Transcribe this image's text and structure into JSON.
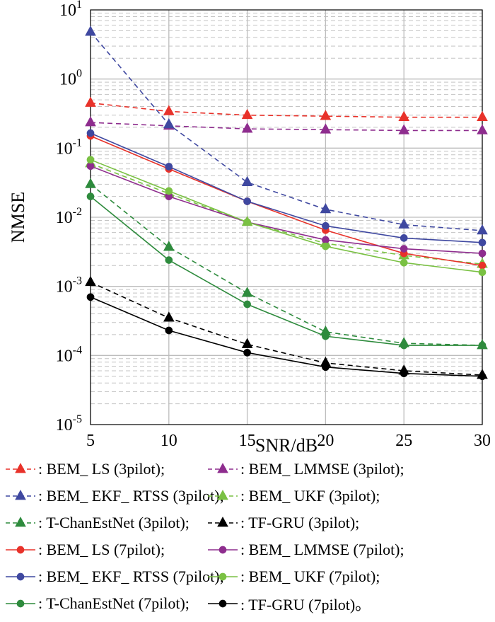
{
  "chart_data": {
    "type": "line",
    "ylabel": "NMSE",
    "xlabel": "SNR/dB",
    "yscale": "log",
    "ylim": [
      1e-05,
      10
    ],
    "xlim": [
      5,
      30
    ],
    "x": [
      5,
      10,
      15,
      20,
      25,
      30
    ],
    "x_ticks": [
      "5",
      "10",
      "15",
      "20",
      "25",
      "30"
    ],
    "y_ticks": [
      {
        "base": "10",
        "exp": "-5"
      },
      {
        "base": "10",
        "exp": "-4"
      },
      {
        "base": "10",
        "exp": "-3"
      },
      {
        "base": "10",
        "exp": "-2"
      },
      {
        "base": "10",
        "exp": "-1"
      },
      {
        "base": "10",
        "exp": "0"
      },
      {
        "base": "10",
        "exp": "1"
      }
    ],
    "grid": true,
    "legend_position": "below",
    "series": [
      {
        "name": "BEM_ LS (3pilot);",
        "color": "#e8322a",
        "dash": "dashed",
        "marker": "triangle",
        "values": [
          0.45,
          0.34,
          0.3,
          0.29,
          0.28,
          0.28
        ]
      },
      {
        "name": "BEM_ LMMSE (3pilot);",
        "color": "#8e2d8e",
        "dash": "dashed",
        "marker": "triangle",
        "values": [
          0.235,
          0.21,
          0.19,
          0.185,
          0.18,
          0.18
        ]
      },
      {
        "name": "BEM_ EKF_ RTSS (3pilot);",
        "color": "#3f48a0",
        "dash": "dashed",
        "marker": "triangle",
        "values": [
          4.8,
          0.22,
          0.032,
          0.013,
          0.0078,
          0.0064
        ]
      },
      {
        "name": "BEM_ UKF (3pilot);",
        "color": "#7ac143",
        "dash": "dashed",
        "marker": "triangle",
        "values": [
          0.06,
          0.022,
          0.0085,
          0.0042,
          0.0028,
          0.0021
        ]
      },
      {
        "name": "T-ChanEstNet (3pilot);",
        "color": "#2e8b3d",
        "dash": "dashed",
        "marker": "triangle",
        "values": [
          0.03,
          0.0037,
          0.0008,
          0.00022,
          0.00015,
          0.00014
        ]
      },
      {
        "name": "TF-GRU (3pilot);",
        "color": "#000000",
        "dash": "dashed",
        "marker": "triangle",
        "values": [
          0.00115,
          0.00035,
          0.000145,
          7.8e-05,
          6e-05,
          5.2e-05
        ]
      },
      {
        "name": "BEM_ LS (7pilot);",
        "color": "#e8322a",
        "dash": "solid",
        "marker": "circle",
        "values": [
          0.15,
          0.05,
          0.017,
          0.0065,
          0.003,
          0.002
        ]
      },
      {
        "name": "BEM_ LMMSE (7pilot);",
        "color": "#8e2d8e",
        "dash": "solid",
        "marker": "circle",
        "values": [
          0.055,
          0.02,
          0.0085,
          0.0047,
          0.0035,
          0.003
        ]
      },
      {
        "name": "BEM_ EKF_ RTSS (7pilot);",
        "color": "#3f48a0",
        "dash": "solid",
        "marker": "circle",
        "values": [
          0.165,
          0.054,
          0.017,
          0.0075,
          0.005,
          0.0043
        ]
      },
      {
        "name": "BEM_ UKF (7pilot);",
        "color": "#7ac143",
        "dash": "solid",
        "marker": "circle",
        "values": [
          0.068,
          0.024,
          0.0085,
          0.0038,
          0.0022,
          0.0016
        ]
      },
      {
        "name": "T-ChanEstNet (7pilot);",
        "color": "#2e8b3d",
        "dash": "solid",
        "marker": "circle",
        "values": [
          0.02,
          0.0024,
          0.00055,
          0.00019,
          0.00014,
          0.00014
        ]
      },
      {
        "name": "TF-GRU (7pilot)。",
        "color": "#000000",
        "dash": "solid",
        "marker": "circle",
        "values": [
          0.0007,
          0.00023,
          0.00011,
          6.8e-05,
          5.5e-05,
          5e-05
        ]
      }
    ]
  },
  "legend_prefix": ": "
}
